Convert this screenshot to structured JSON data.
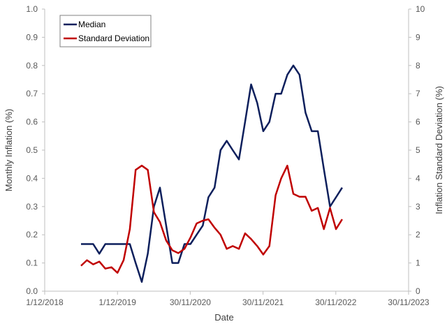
{
  "chart_data": {
    "type": "line",
    "xlabel": "Date",
    "ylabel": "Monthly Inflation (%)",
    "y2label": "Inflation Standard Deviation (%)",
    "xlim": [
      "2018-12-01",
      "2023-11-30"
    ],
    "xticks": [
      "1/12/2018",
      "1/12/2019",
      "30/11/2020",
      "30/11/2021",
      "30/11/2022",
      "30/11/2023"
    ],
    "ylim": [
      0,
      1.0
    ],
    "yticks": [
      "0.0",
      "0.1",
      "0.2",
      "0.3",
      "0.4",
      "0.5",
      "0.6",
      "0.7",
      "0.8",
      "0.9",
      "1.0"
    ],
    "y2lim": [
      0,
      10
    ],
    "y2ticks": [
      "0",
      "1",
      "2",
      "3",
      "4",
      "5",
      "6",
      "7",
      "8",
      "9",
      "10"
    ],
    "grid": false,
    "legend_position": "top-left",
    "series": [
      {
        "name": "Median",
        "axis": "left",
        "color": "#0d1f5c",
        "x": [
          "2019-06-01",
          "2019-07-01",
          "2019-08-01",
          "2019-09-01",
          "2019-10-01",
          "2019-11-01",
          "2019-12-01",
          "2020-01-01",
          "2020-02-01",
          "2020-03-01",
          "2020-04-01",
          "2020-05-01",
          "2020-06-01",
          "2020-07-01",
          "2020-08-01",
          "2020-09-01",
          "2020-10-01",
          "2020-11-01",
          "2020-12-01",
          "2021-01-01",
          "2021-02-01",
          "2021-03-01",
          "2021-04-01",
          "2021-05-01",
          "2021-06-01",
          "2021-07-01",
          "2021-08-01",
          "2021-09-01",
          "2021-10-01",
          "2021-11-01",
          "2021-12-01",
          "2022-01-01",
          "2022-02-01",
          "2022-03-01",
          "2022-04-01",
          "2022-05-01",
          "2022-06-01",
          "2022-07-01",
          "2022-08-01",
          "2022-09-01",
          "2022-10-01",
          "2022-11-01",
          "2022-12-01",
          "2023-01-01"
        ],
        "values": [
          0.167,
          0.167,
          0.167,
          0.133,
          0.167,
          0.167,
          0.167,
          0.167,
          0.167,
          0.1,
          0.033,
          0.133,
          0.3,
          0.367,
          0.233,
          0.1,
          0.1,
          0.167,
          0.167,
          0.2,
          0.233,
          0.333,
          0.367,
          0.5,
          0.533,
          0.5,
          0.467,
          0.6,
          0.733,
          0.667,
          0.567,
          0.6,
          0.7,
          0.7,
          0.767,
          0.8,
          0.767,
          0.633,
          0.567,
          0.567,
          0.433,
          0.3,
          0.333,
          0.367
        ]
      },
      {
        "name": "Standard Deviation",
        "axis": "right",
        "color": "#c00000",
        "x": [
          "2019-06-01",
          "2019-07-01",
          "2019-08-01",
          "2019-09-01",
          "2019-10-01",
          "2019-11-01",
          "2019-12-01",
          "2020-01-01",
          "2020-02-01",
          "2020-03-01",
          "2020-04-01",
          "2020-05-01",
          "2020-06-01",
          "2020-07-01",
          "2020-08-01",
          "2020-09-01",
          "2020-10-01",
          "2020-11-01",
          "2020-12-01",
          "2021-01-01",
          "2021-02-01",
          "2021-03-01",
          "2021-04-01",
          "2021-05-01",
          "2021-06-01",
          "2021-07-01",
          "2021-08-01",
          "2021-09-01",
          "2021-10-01",
          "2021-11-01",
          "2021-12-01",
          "2022-01-01",
          "2022-02-01",
          "2022-03-01",
          "2022-04-01",
          "2022-05-01",
          "2022-06-01",
          "2022-07-01",
          "2022-08-01",
          "2022-09-01",
          "2022-10-01",
          "2022-11-01",
          "2022-12-01",
          "2023-01-01"
        ],
        "values": [
          0.9,
          1.1,
          0.95,
          1.05,
          0.8,
          0.85,
          0.65,
          1.1,
          2.2,
          4.3,
          4.45,
          4.3,
          2.8,
          2.45,
          1.8,
          1.45,
          1.35,
          1.5,
          1.9,
          2.4,
          2.5,
          2.55,
          2.25,
          2.0,
          1.5,
          1.6,
          1.5,
          2.05,
          1.85,
          1.6,
          1.3,
          1.6,
          3.4,
          4.0,
          4.45,
          3.45,
          3.35,
          3.35,
          2.85,
          2.95,
          2.2,
          2.95,
          2.2,
          2.55
        ]
      }
    ]
  }
}
